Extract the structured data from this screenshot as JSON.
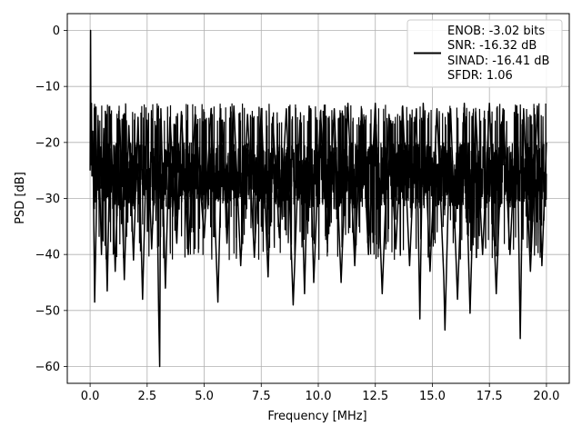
{
  "chart_data": {
    "type": "line",
    "title": "",
    "xlabel": "Frequency [MHz]",
    "ylabel": "PSD [dB]",
    "xlim": [
      -1.0,
      21.0
    ],
    "ylim": [
      -63.0,
      3.0
    ],
    "x_ticks": [
      0.0,
      2.5,
      5.0,
      7.5,
      10.0,
      12.5,
      15.0,
      17.5,
      20.0
    ],
    "x_tick_labels": [
      "0.0",
      "2.5",
      "5.0",
      "7.5",
      "10.0",
      "12.5",
      "15.0",
      "17.5",
      "20.0"
    ],
    "y_ticks": [
      0,
      -10,
      -20,
      -30,
      -40,
      -50,
      -60
    ],
    "y_tick_labels": [
      "0",
      "−10",
      "−20",
      "−30",
      "−40",
      "−50",
      "−60"
    ],
    "grid": true,
    "legend_position": "top-right",
    "legend_lines": [
      "ENOB: -3.02 bits",
      "SNR: -16.32 dB",
      "SINAD: -16.41 dB",
      "SFDR: 1.06"
    ],
    "series": [
      {
        "color": "#000000",
        "x": [
          0.0,
          0.02,
          0.04,
          0.06,
          0.08,
          0.12,
          0.2,
          0.35,
          0.5,
          0.6,
          0.75,
          0.9,
          1.1,
          1.3,
          1.5,
          1.7,
          1.9,
          2.1,
          2.3,
          2.5,
          2.7,
          2.9,
          3.0,
          3.05,
          3.1,
          3.3,
          3.5,
          3.8,
          4.0,
          4.3,
          4.6,
          5.0,
          5.3,
          5.6,
          5.8,
          6.0,
          6.3,
          6.6,
          6.9,
          7.2,
          7.5,
          7.8,
          8.0,
          8.3,
          8.6,
          8.9,
          9.2,
          9.4,
          9.6,
          9.8,
          10.1,
          10.4,
          10.7,
          11.0,
          11.3,
          11.6,
          11.9,
          12.2,
          12.5,
          12.8,
          13.1,
          13.4,
          13.7,
          14.0,
          14.3,
          14.45,
          14.6,
          14.9,
          15.2,
          15.5,
          15.55,
          15.8,
          16.1,
          16.4,
          16.65,
          16.9,
          17.2,
          17.5,
          17.8,
          18.1,
          18.4,
          18.7,
          18.85,
          19.0,
          19.3,
          19.6,
          19.8,
          20.0
        ],
        "y": [
          -25.0,
          0.0,
          -24.0,
          -13.0,
          -26.0,
          -18.0,
          -48.5,
          -16.0,
          -40.0,
          -17.5,
          -46.5,
          -15.0,
          -43.0,
          -16.0,
          -44.5,
          -17.0,
          -41.0,
          -15.5,
          -48.0,
          -16.0,
          -39.0,
          -17.0,
          -49.5,
          -60.0,
          -14.0,
          -46.0,
          -15.5,
          -38.0,
          -14.5,
          -40.0,
          -15.0,
          -37.0,
          -14.0,
          -48.5,
          -16.0,
          -38.0,
          -13.5,
          -42.0,
          -15.0,
          -40.5,
          -14.0,
          -44.0,
          -15.5,
          -37.0,
          -14.0,
          -49.0,
          -16.0,
          -47.0,
          -13.5,
          -45.0,
          -14.5,
          -38.0,
          -14.0,
          -45.0,
          -13.0,
          -42.0,
          -14.0,
          -40.0,
          -13.0,
          -47.0,
          -15.0,
          -39.0,
          -13.5,
          -42.0,
          -14.0,
          -51.5,
          -13.0,
          -43.0,
          -14.0,
          -44.0,
          -53.5,
          -14.0,
          -48.0,
          -13.0,
          -50.5,
          -14.5,
          -40.0,
          -13.0,
          -47.0,
          -14.0,
          -40.0,
          -13.5,
          -55.0,
          -14.0,
          -43.0,
          -13.5,
          -42.0,
          -20.0
        ]
      }
    ]
  }
}
